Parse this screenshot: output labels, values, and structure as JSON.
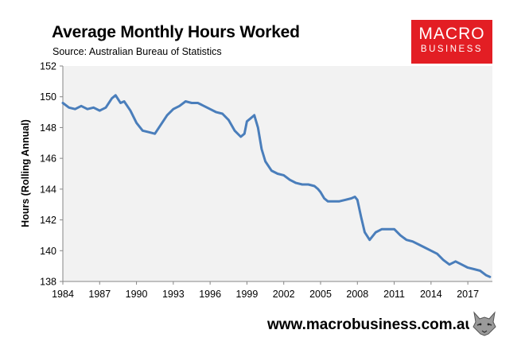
{
  "header": {
    "title": "Average Monthly Hours Worked",
    "source": "Source: Australian Bureau of Statistics"
  },
  "logo": {
    "line1": "MACRO",
    "line2": "BUSINESS"
  },
  "footer": {
    "url": "www.macrobusiness.com.au",
    "mascot_icon": "wolf-icon"
  },
  "colors": {
    "line": "#4a7ebb",
    "plot_bg": "#f2f2f2",
    "brand": "#e31e24"
  },
  "chart_data": {
    "type": "line",
    "title": "Average Monthly Hours Worked",
    "xlabel": "",
    "ylabel": "Hours (Rolling Annual)",
    "xlim": [
      1984,
      2019
    ],
    "ylim": [
      138,
      152
    ],
    "x_ticks": [
      "1984",
      "1987",
      "1990",
      "1993",
      "1996",
      "1999",
      "2002",
      "2005",
      "2008",
      "2011",
      "2014",
      "2017"
    ],
    "y_ticks": [
      "138",
      "140",
      "142",
      "144",
      "146",
      "148",
      "150",
      "152"
    ],
    "grid": false,
    "series": [
      {
        "name": "Average Monthly Hours Worked",
        "x": [
          1984,
          1984.5,
          1985,
          1985.5,
          1986,
          1986.5,
          1987,
          1987.5,
          1988,
          1988.3,
          1988.7,
          1989,
          1989.5,
          1990,
          1990.5,
          1991,
          1991.5,
          1992,
          1992.5,
          1993,
          1993.5,
          1994,
          1994.5,
          1995,
          1995.5,
          1996,
          1996.5,
          1997,
          1997.5,
          1998,
          1998.5,
          1998.8,
          1999,
          1999.3,
          1999.6,
          1999.9,
          2000.2,
          2000.5,
          2001,
          2001.5,
          2002,
          2002.5,
          2003,
          2003.5,
          2004,
          2004.5,
          2004.8,
          2005,
          2005.3,
          2005.6,
          2006,
          2006.5,
          2007,
          2007.5,
          2007.8,
          2008,
          2008.3,
          2008.6,
          2009,
          2009.5,
          2010,
          2010.5,
          2011,
          2011.5,
          2012,
          2012.5,
          2013,
          2013.5,
          2014,
          2014.5,
          2015,
          2015.5,
          2016,
          2016.5,
          2017,
          2017.5,
          2018,
          2018.5,
          2018.8
        ],
        "values": [
          149.6,
          149.3,
          149.2,
          149.4,
          149.2,
          149.3,
          149.1,
          149.3,
          149.9,
          150.1,
          149.6,
          149.7,
          149.1,
          148.3,
          147.8,
          147.7,
          147.6,
          148.2,
          148.8,
          149.2,
          149.4,
          149.7,
          149.6,
          149.6,
          149.4,
          149.2,
          149.0,
          148.9,
          148.5,
          147.8,
          147.4,
          147.6,
          148.4,
          148.6,
          148.8,
          148.0,
          146.6,
          145.8,
          145.2,
          145.0,
          144.9,
          144.6,
          144.4,
          144.3,
          144.3,
          144.2,
          144.0,
          143.8,
          143.4,
          143.2,
          143.2,
          143.2,
          143.3,
          143.4,
          143.5,
          143.3,
          142.2,
          141.2,
          140.7,
          141.2,
          141.4,
          141.4,
          141.4,
          141.0,
          140.7,
          140.6,
          140.4,
          140.2,
          140.0,
          139.8,
          139.4,
          139.1,
          139.3,
          139.1,
          138.9,
          138.8,
          138.7,
          138.4,
          138.3
        ]
      }
    ]
  }
}
